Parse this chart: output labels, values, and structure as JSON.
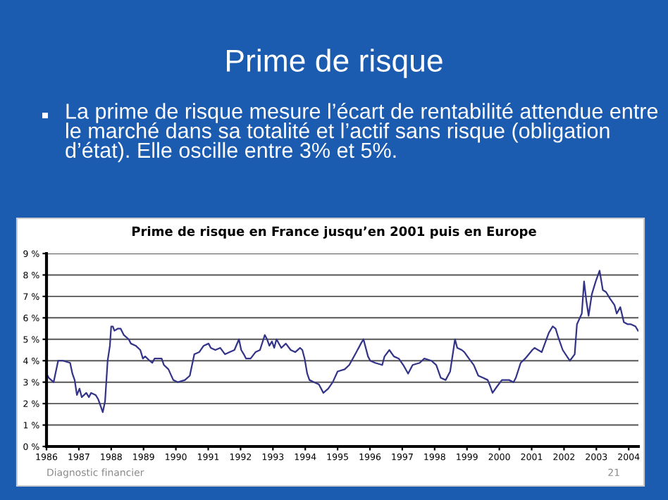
{
  "chart_data": {
    "type": "line",
    "title": "Prime de risque",
    "subtitle": "La prime de risque mesure l’écart de rentabilité attendue entre le marché dans sa totalité et l’actif sans risque (obligation d’état). Elle oscille entre 3% et 5%.",
    "annotations": [
      "Prime de risque en France jusqu’en 2001 puis en Europe",
      "Diagnostic financier",
      "21"
    ],
    "series": [
      {
        "color": "#333388",
        "x": [
          1986.0,
          1986.07,
          1986.22,
          1986.36,
          1986.51,
          1986.73,
          1986.8,
          1986.87,
          1986.94,
          1987.02,
          1987.09,
          1987.23,
          1987.31,
          1987.38,
          1987.52,
          1987.6,
          1987.67,
          1987.74,
          1987.81,
          1987.89,
          1987.96,
          1988.0,
          1988.05,
          1988.1,
          1988.21,
          1988.29,
          1988.39,
          1988.54,
          1988.61,
          1988.76,
          1988.9,
          1988.98,
          1989.05,
          1989.19,
          1989.27,
          1989.34,
          1989.56,
          1989.63,
          1989.77,
          1989.92,
          1990.06,
          1990.28,
          1990.43,
          1990.5,
          1990.57,
          1990.72,
          1990.86,
          1991.01,
          1991.08,
          1991.22,
          1991.37,
          1991.52,
          1991.66,
          1991.81,
          1991.95,
          1992.02,
          1992.1,
          1992.17,
          1992.31,
          1992.46,
          1992.6,
          1992.75,
          1992.82,
          1992.89,
          1992.97,
          1993.04,
          1993.11,
          1993.26,
          1993.4,
          1993.55,
          1993.69,
          1993.84,
          1993.91,
          1993.98,
          1994.06,
          1994.13,
          1994.27,
          1994.42,
          1994.56,
          1994.71,
          1994.85,
          1995.0,
          1995.22,
          1995.36,
          1995.58,
          1995.72,
          1995.8,
          1995.94,
          1996.01,
          1996.16,
          1996.38,
          1996.45,
          1996.6,
          1996.74,
          1996.89,
          1997.03,
          1997.18,
          1997.32,
          1997.54,
          1997.68,
          1997.9,
          1998.05,
          1998.19,
          1998.34,
          1998.48,
          1998.63,
          1998.7,
          1998.84,
          1998.92,
          1999.06,
          1999.21,
          1999.35,
          1999.5,
          1999.64,
          1999.72,
          1999.79,
          1999.93,
          2000.08,
          2000.3,
          2000.44,
          2000.51,
          2000.66,
          2000.8,
          2001.02,
          2001.09,
          2001.31,
          2001.53,
          2001.65,
          2001.74,
          2001.82,
          2001.96,
          2002.18,
          2002.33,
          2002.4,
          2002.55,
          2002.62,
          2002.69,
          2002.76,
          2002.86,
          2002.98,
          2003.1,
          2003.2,
          2003.3,
          2003.42,
          2003.56,
          2003.63,
          2003.74,
          2003.85,
          2003.97,
          2004.07,
          2004.21,
          2004.29
        ],
        "values": [
          3.4,
          3.2,
          3.0,
          4.0,
          4.0,
          3.9,
          3.4,
          3.1,
          2.4,
          2.7,
          2.3,
          2.5,
          2.3,
          2.5,
          2.4,
          2.2,
          1.9,
          1.6,
          2.1,
          4.0,
          4.7,
          5.6,
          5.6,
          5.4,
          5.5,
          5.5,
          5.2,
          5.0,
          4.8,
          4.7,
          4.5,
          4.1,
          4.2,
          4.0,
          3.9,
          4.1,
          4.1,
          3.8,
          3.6,
          3.1,
          3.0,
          3.1,
          3.3,
          3.8,
          4.3,
          4.4,
          4.7,
          4.8,
          4.6,
          4.5,
          4.6,
          4.3,
          4.4,
          4.5,
          5.0,
          4.5,
          4.3,
          4.1,
          4.1,
          4.4,
          4.5,
          5.2,
          5.0,
          4.7,
          4.9,
          4.6,
          5.0,
          4.6,
          4.8,
          4.5,
          4.4,
          4.6,
          4.5,
          4.1,
          3.4,
          3.1,
          3.0,
          2.9,
          2.5,
          2.7,
          3.0,
          3.5,
          3.6,
          3.8,
          4.4,
          4.8,
          5.0,
          4.2,
          4.0,
          3.9,
          3.8,
          4.2,
          4.5,
          4.2,
          4.1,
          3.8,
          3.4,
          3.8,
          3.9,
          4.1,
          4.0,
          3.8,
          3.2,
          3.1,
          3.5,
          5.0,
          4.6,
          4.5,
          4.4,
          4.1,
          3.8,
          3.3,
          3.2,
          3.1,
          2.8,
          2.5,
          2.8,
          3.1,
          3.1,
          3.0,
          3.2,
          3.9,
          4.1,
          4.5,
          4.6,
          4.4,
          5.3,
          5.6,
          5.5,
          5.1,
          4.5,
          4.0,
          4.3,
          5.7,
          6.2,
          7.7,
          6.8,
          6.1,
          7.1,
          7.7,
          8.2,
          7.3,
          7.2,
          6.9,
          6.6,
          6.2,
          6.5,
          5.8,
          5.7,
          5.7,
          5.6,
          5.4
        ]
      }
    ],
    "xlim": [
      1986,
      2004.3
    ],
    "xticks": [
      1986,
      1987,
      1988,
      1989,
      1990,
      1991,
      1992,
      1993,
      1994,
      1995,
      1996,
      1997,
      1998,
      1999,
      2000,
      2001,
      2002,
      2003,
      2004
    ],
    "ylim": [
      0,
      9
    ],
    "yticks": [
      {
        "value": 0,
        "label": "0 %"
      },
      {
        "value": 1,
        "label": "1 %"
      },
      {
        "value": 2,
        "label": "2 %"
      },
      {
        "value": 3,
        "label": "3 %"
      },
      {
        "value": 4,
        "label": "4 %"
      },
      {
        "value": 5,
        "label": "5 %"
      },
      {
        "value": 6,
        "label": "6 %"
      },
      {
        "value": 7,
        "label": "7 %"
      },
      {
        "value": 8,
        "label": "8 %"
      },
      {
        "value": 9,
        "label": "9 %"
      }
    ],
    "grid": "y",
    "marker": "none",
    "line_style": "solid"
  }
}
